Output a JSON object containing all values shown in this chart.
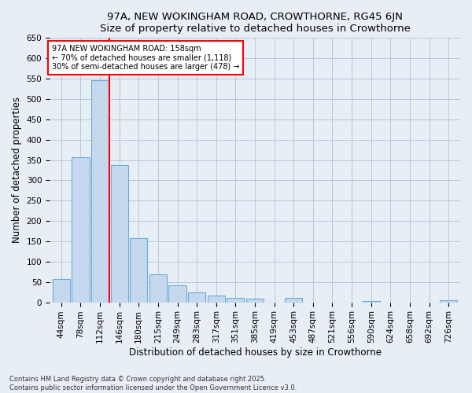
{
  "title1": "97A, NEW WOKINGHAM ROAD, CROWTHORNE, RG45 6JN",
  "title2": "Size of property relative to detached houses in Crowthorne",
  "xlabel": "Distribution of detached houses by size in Crowthorne",
  "ylabel": "Number of detached properties",
  "categories": [
    "44sqm",
    "78sqm",
    "112sqm",
    "146sqm",
    "180sqm",
    "215sqm",
    "249sqm",
    "283sqm",
    "317sqm",
    "351sqm",
    "385sqm",
    "419sqm",
    "453sqm",
    "487sqm",
    "521sqm",
    "556sqm",
    "590sqm",
    "624sqm",
    "658sqm",
    "692sqm",
    "726sqm"
  ],
  "values": [
    58,
    356,
    546,
    338,
    157,
    68,
    42,
    25,
    17,
    10,
    8,
    0,
    10,
    0,
    0,
    0,
    4,
    0,
    0,
    0,
    5
  ],
  "bar_color": "#c5d8ed",
  "bar_edge_color": "#6aaed6",
  "vline_x": 2.5,
  "vline_color": "red",
  "annotation_title": "97A NEW WOKINGHAM ROAD: 158sqm",
  "annotation_line1": "← 70% of detached houses are smaller (1,118)",
  "annotation_line2": "30% of semi-detached houses are larger (478) →",
  "annotation_box_color": "white",
  "annotation_box_edge": "red",
  "ylim": [
    0,
    650
  ],
  "yticks": [
    0,
    50,
    100,
    150,
    200,
    250,
    300,
    350,
    400,
    450,
    500,
    550,
    600,
    650
  ],
  "footer1": "Contains HM Land Registry data © Crown copyright and database right 2025.",
  "footer2": "Contains public sector information licensed under the Open Government Licence v3.0.",
  "bg_color": "#e8eef5",
  "plot_bg_color": "#e8eef5",
  "grid_color": "#b8c8d8",
  "title_fontsize": 9.5,
  "axis_fontsize": 8.5,
  "tick_fontsize": 7.5
}
